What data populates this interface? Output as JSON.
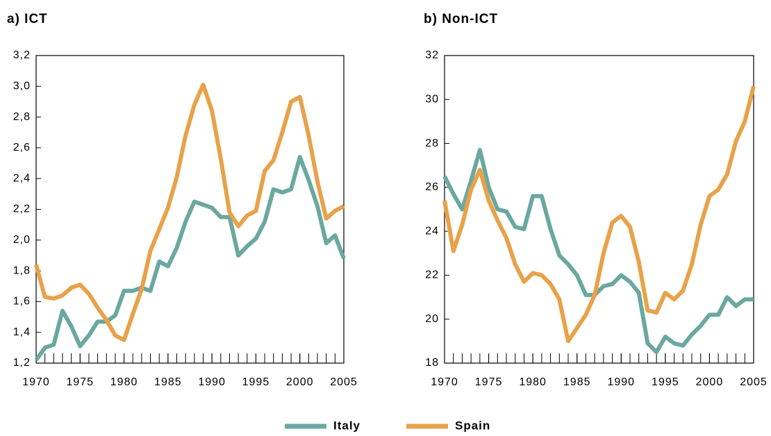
{
  "chart_data": [
    {
      "type": "line",
      "title": "a) ICT",
      "x": [
        1970,
        1971,
        1972,
        1973,
        1974,
        1975,
        1976,
        1977,
        1978,
        1979,
        1980,
        1981,
        1982,
        1983,
        1984,
        1985,
        1986,
        1987,
        1988,
        1989,
        1990,
        1991,
        1992,
        1993,
        1994,
        1995,
        1996,
        1997,
        1998,
        1999,
        2000,
        2001,
        2002,
        2003,
        2004,
        2005
      ],
      "xlim": [
        1970,
        2005
      ],
      "xticks": [
        1970,
        1975,
        1980,
        1985,
        1990,
        1995,
        2000,
        2005
      ],
      "ylim": [
        1.2,
        3.2
      ],
      "yticks": [
        {
          "value": 1.2,
          "label": "1,2"
        },
        {
          "value": 1.4,
          "label": "1,4"
        },
        {
          "value": 1.6,
          "label": "1,6"
        },
        {
          "value": 1.8,
          "label": "1,8"
        },
        {
          "value": 2.0,
          "label": "2,0"
        },
        {
          "value": 2.2,
          "label": "2,2"
        },
        {
          "value": 2.4,
          "label": "2,4"
        },
        {
          "value": 2.6,
          "label": "2,6"
        },
        {
          "value": 2.8,
          "label": "2,8"
        },
        {
          "value": 3.0,
          "label": "3,0"
        },
        {
          "value": 3.2,
          "label": "3,2"
        }
      ],
      "series": [
        {
          "name": "Italy",
          "color": "#6aa8a0",
          "values": [
            1.22,
            1.3,
            1.32,
            1.54,
            1.44,
            1.31,
            1.38,
            1.47,
            1.47,
            1.51,
            1.67,
            1.67,
            1.69,
            1.67,
            1.86,
            1.83,
            1.95,
            2.12,
            2.25,
            2.23,
            2.21,
            2.15,
            2.15,
            1.9,
            1.96,
            2.01,
            2.12,
            2.33,
            2.31,
            2.33,
            2.54,
            2.39,
            2.22,
            1.98,
            2.03,
            1.88
          ]
        },
        {
          "name": "Spain",
          "color": "#e8a24a",
          "values": [
            1.84,
            1.63,
            1.62,
            1.64,
            1.69,
            1.71,
            1.65,
            1.56,
            1.48,
            1.38,
            1.35,
            1.52,
            1.68,
            1.93,
            2.07,
            2.21,
            2.41,
            2.68,
            2.88,
            3.01,
            2.84,
            2.53,
            2.18,
            2.09,
            2.16,
            2.19,
            2.45,
            2.52,
            2.7,
            2.9,
            2.93,
            2.68,
            2.38,
            2.14,
            2.19,
            2.22
          ]
        }
      ]
    },
    {
      "type": "line",
      "title": "b) Non-ICT",
      "x": [
        1970,
        1971,
        1972,
        1973,
        1974,
        1975,
        1976,
        1977,
        1978,
        1979,
        1980,
        1981,
        1982,
        1983,
        1984,
        1985,
        1986,
        1987,
        1988,
        1989,
        1990,
        1991,
        1992,
        1993,
        1994,
        1995,
        1996,
        1997,
        1998,
        1999,
        2000,
        2001,
        2002,
        2003,
        2004,
        2005
      ],
      "xlim": [
        1970,
        2005
      ],
      "xticks": [
        1970,
        1975,
        1980,
        1985,
        1990,
        1995,
        2000,
        2005
      ],
      "ylim": [
        18,
        32
      ],
      "yticks": [
        18,
        20,
        22,
        24,
        26,
        28,
        30,
        32
      ],
      "series": [
        {
          "name": "Italy",
          "color": "#6aa8a0",
          "values": [
            26.5,
            25.7,
            25.0,
            26.3,
            27.7,
            26.0,
            25.0,
            24.9,
            24.2,
            24.1,
            25.6,
            25.6,
            24.1,
            22.9,
            22.5,
            22.0,
            21.1,
            21.1,
            21.5,
            21.6,
            22.0,
            21.7,
            21.2,
            18.9,
            18.5,
            19.2,
            18.9,
            18.8,
            19.3,
            19.7,
            20.2,
            20.2,
            21.0,
            20.6,
            20.9,
            20.9
          ]
        },
        {
          "name": "Spain",
          "color": "#e8a24a",
          "values": [
            25.4,
            23.1,
            24.3,
            25.9,
            26.8,
            25.4,
            24.5,
            23.7,
            22.5,
            21.7,
            22.1,
            22.0,
            21.6,
            20.9,
            19.0,
            19.6,
            20.2,
            21.1,
            23.0,
            24.4,
            24.7,
            24.2,
            22.6,
            20.4,
            20.3,
            21.2,
            20.9,
            21.3,
            22.5,
            24.3,
            25.6,
            25.9,
            26.6,
            28.1,
            29.0,
            30.6
          ]
        }
      ]
    }
  ]
}
